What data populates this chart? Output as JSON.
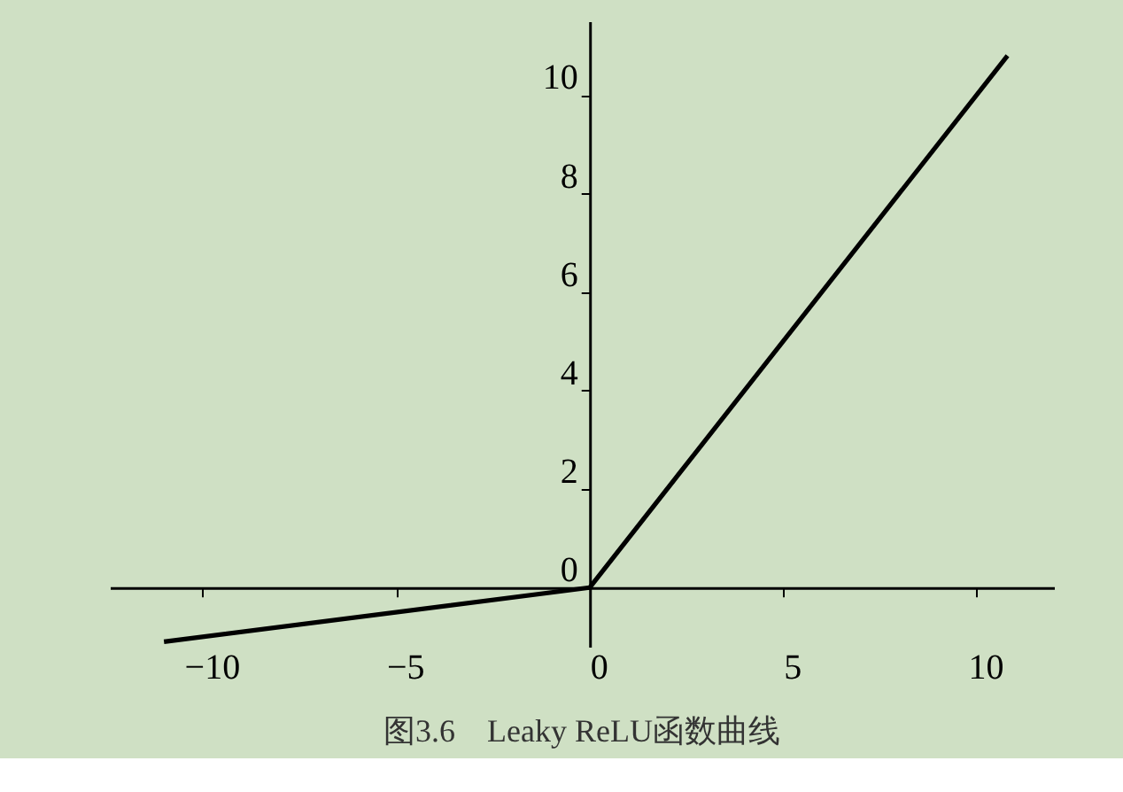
{
  "chart_data": {
    "type": "line",
    "title": "图3.6　Leaky ReLU函数曲线",
    "x": [
      -11,
      0,
      10.8
    ],
    "series": [
      {
        "color": "#000000",
        "values": [
          -1.1,
          0,
          10.8
        ]
      }
    ],
    "xlim": [
      -12.4,
      12
    ],
    "ylim": [
      -1.2,
      11.5
    ],
    "xticks": [
      -10,
      -5,
      0,
      5,
      10
    ],
    "yticks": [
      0,
      2,
      4,
      6,
      8,
      10
    ],
    "grid": false,
    "marker": "none",
    "line_style": "solid"
  }
}
